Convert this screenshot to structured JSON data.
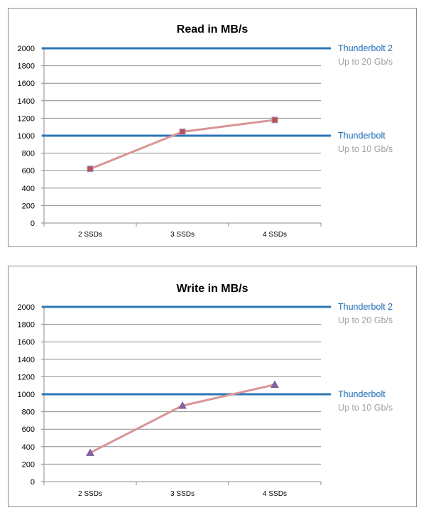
{
  "chart_data": [
    {
      "type": "line",
      "title": "Read in MB/s",
      "categories": [
        "2 SSDs",
        "3 SSDs",
        "4 SSDs"
      ],
      "values": [
        620,
        1045,
        1180
      ],
      "marker": "square",
      "ylim": [
        0,
        2000
      ],
      "yticks": [
        0,
        200,
        400,
        600,
        800,
        1000,
        1200,
        1400,
        1600,
        1800,
        2000
      ],
      "grid": true,
      "reference_lines": [
        {
          "value": 2000,
          "label": "Thunderbolt 2",
          "sublabel": "Up to 20 Gb/s"
        },
        {
          "value": 1000,
          "label": "Thunderbolt",
          "sublabel": "Up to 10 Gb/s"
        }
      ]
    },
    {
      "type": "line",
      "title": "Write in MB/s",
      "categories": [
        "2 SSDs",
        "3 SSDs",
        "4 SSDs"
      ],
      "values": [
        330,
        870,
        1110
      ],
      "marker": "triangle",
      "ylim": [
        0,
        2000
      ],
      "yticks": [
        0,
        200,
        400,
        600,
        800,
        1000,
        1200,
        1400,
        1600,
        1800,
        2000
      ],
      "grid": true,
      "reference_lines": [
        {
          "value": 2000,
          "label": "Thunderbolt 2",
          "sublabel": "Up to 20 Gb/s"
        },
        {
          "value": 1000,
          "label": "Thunderbolt",
          "sublabel": "Up to 10 Gb/s"
        }
      ]
    }
  ],
  "colors": {
    "series_line": "#d99594",
    "marker_fill": "#c0504d",
    "marker_fill_triangle": "#8064a2",
    "reference_line": "#2e75b6",
    "reference_label": "#1f6fb5",
    "reference_sublabel": "#a0a0a0",
    "gridline": "#8c8c8c"
  }
}
